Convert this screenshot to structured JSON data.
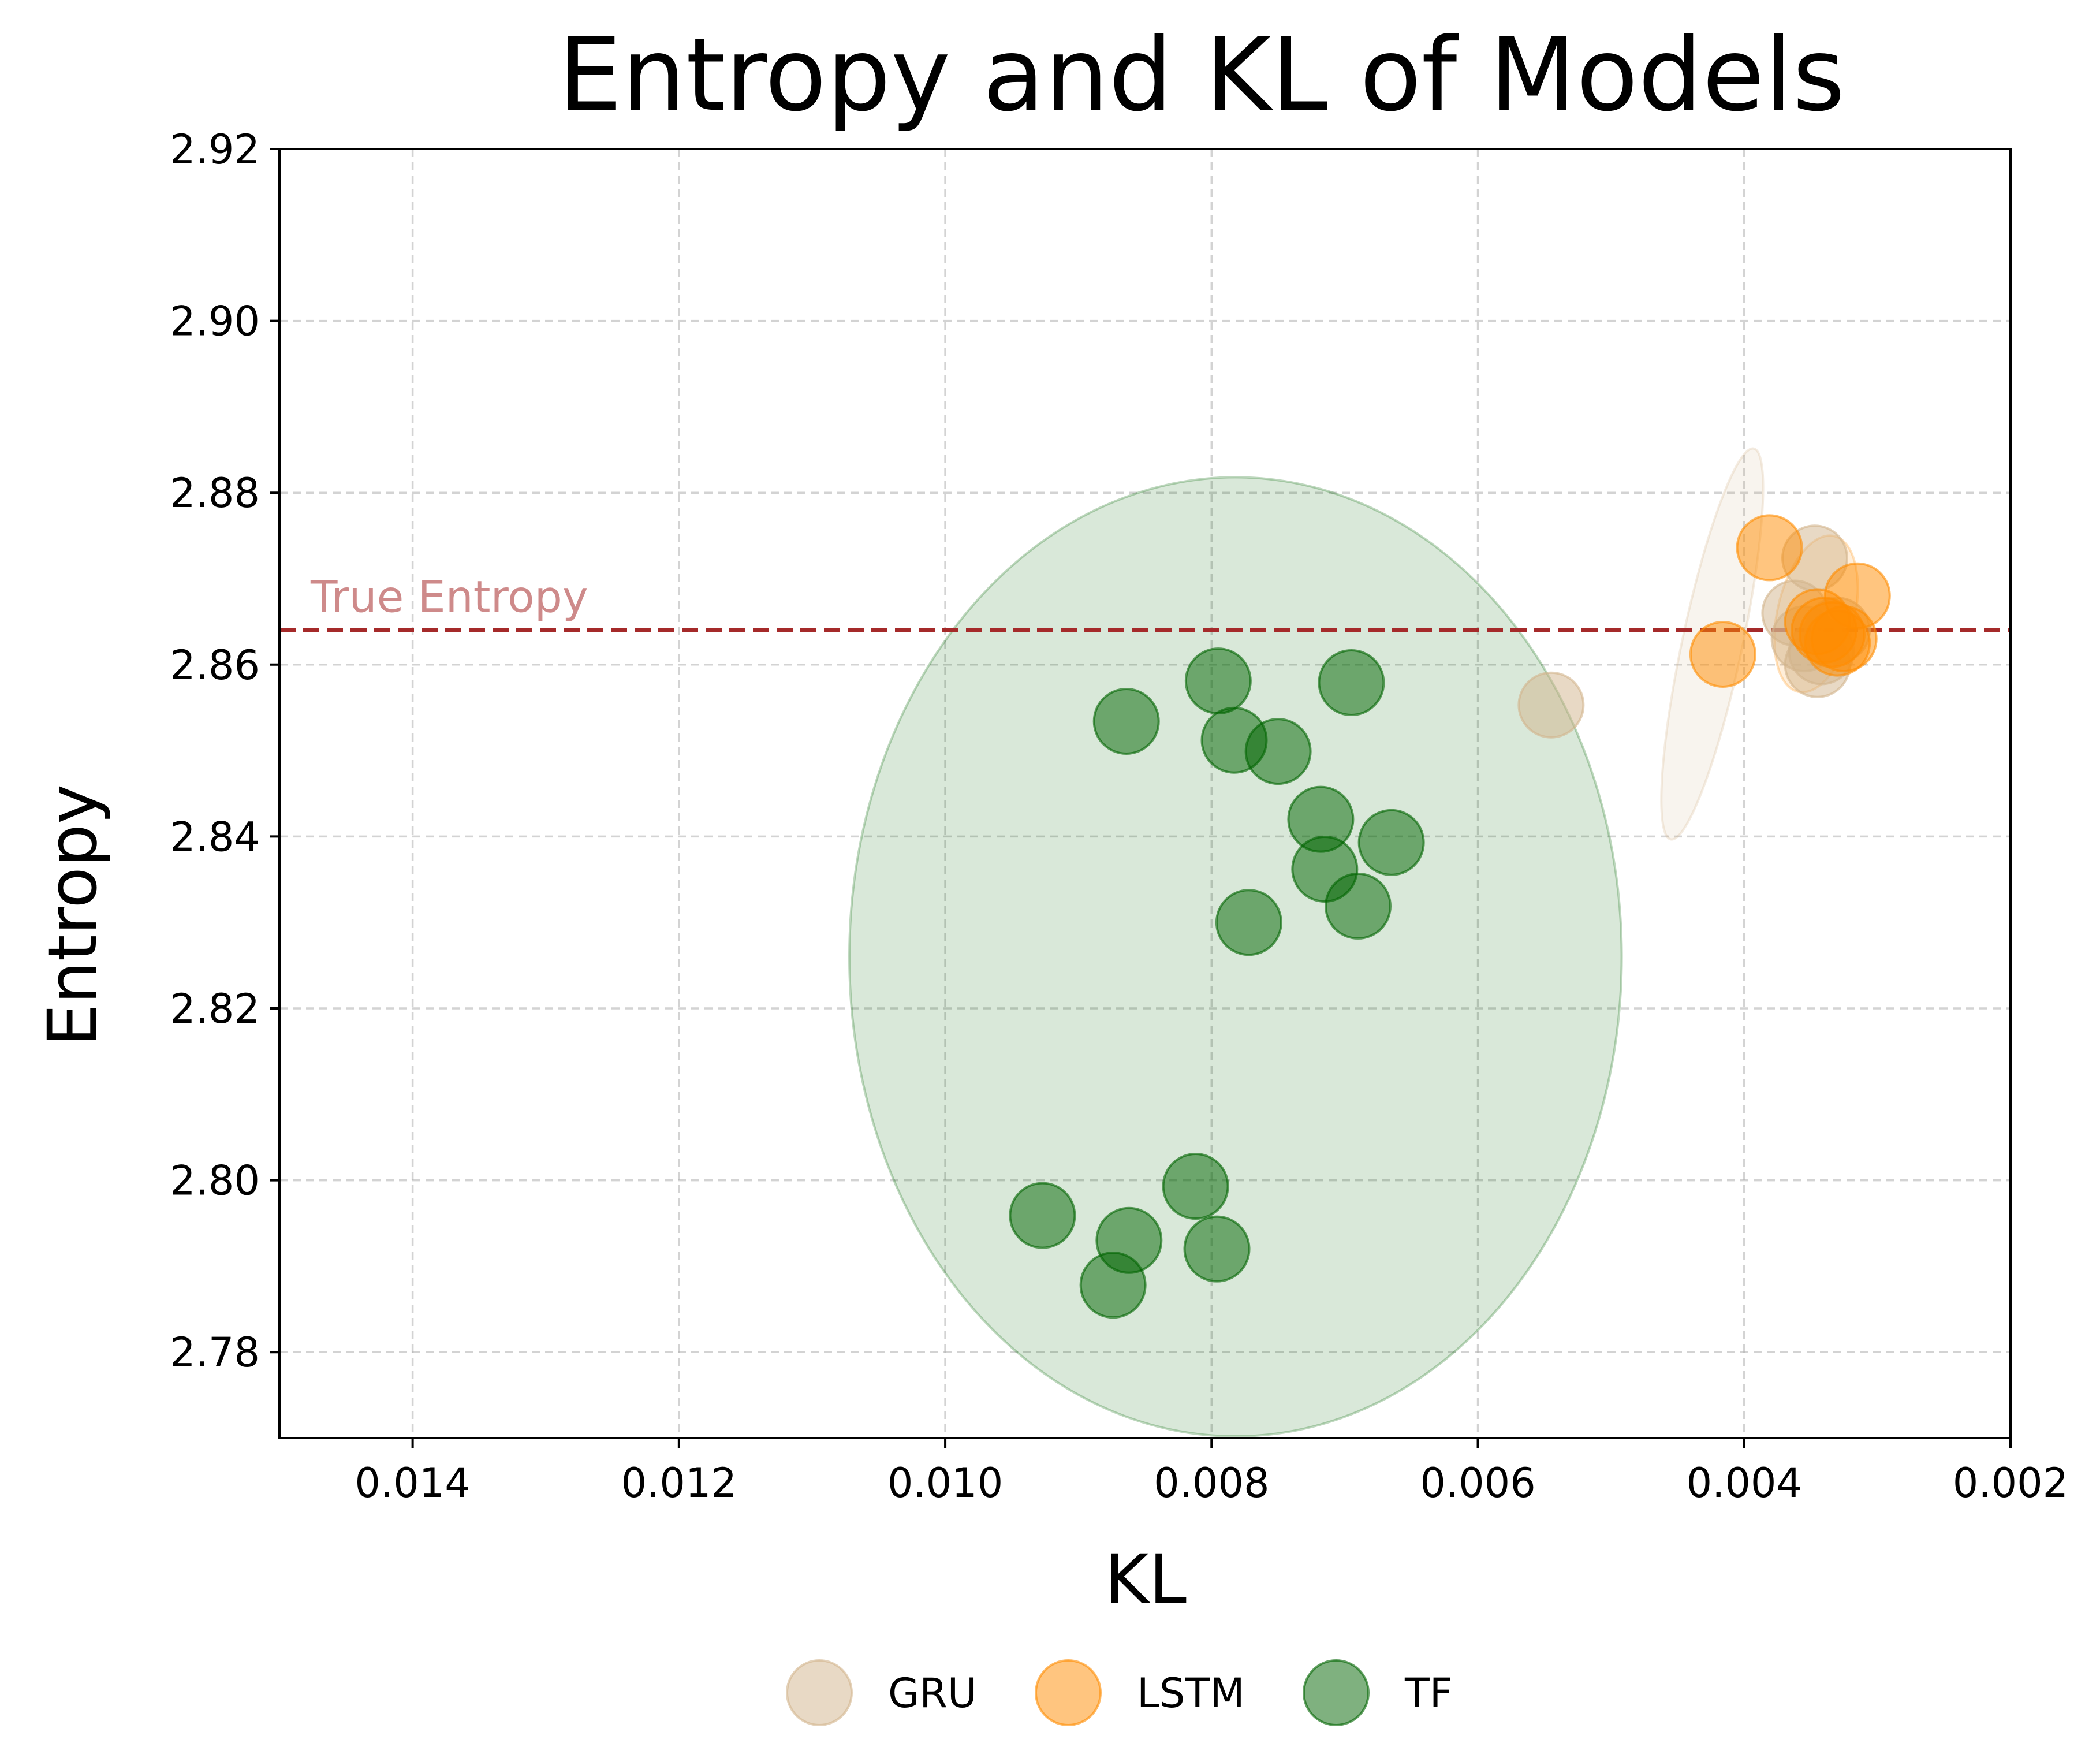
{
  "chart_data": {
    "type": "scatter",
    "title": "Entropy and KL of Models",
    "xlabel": "KL",
    "ylabel": "Entropy",
    "xlim": [
      0.015,
      0.002
    ],
    "ylim": [
      2.77,
      2.92
    ],
    "x_inverted": true,
    "grid": true,
    "xticks": [
      0.014,
      0.012,
      0.01,
      0.008,
      0.006,
      0.004,
      0.002
    ],
    "xtick_labels": [
      "0.014",
      "0.012",
      "0.010",
      "0.008",
      "0.006",
      "0.004",
      "0.002"
    ],
    "yticks": [
      2.78,
      2.8,
      2.82,
      2.84,
      2.86,
      2.88,
      2.9,
      2.92
    ],
    "ytick_labels": [
      "2.78",
      "2.80",
      "2.82",
      "2.84",
      "2.86",
      "2.88",
      "2.90",
      "2.92"
    ],
    "reference_line": {
      "label": "True Entropy",
      "y": 2.864,
      "color": "#a52a2a"
    },
    "legend_position": "bottom-center",
    "series": [
      {
        "name": "GRU",
        "color": "#d2b48c",
        "points": [
          {
            "x": 0.00545,
            "y": 2.8553
          },
          {
            "x": 0.00347,
            "y": 2.8724
          },
          {
            "x": 0.00362,
            "y": 2.866
          },
          {
            "x": 0.00342,
            "y": 2.8615
          },
          {
            "x": 0.00355,
            "y": 2.863
          },
          {
            "x": 0.0033,
            "y": 2.864
          },
          {
            "x": 0.00345,
            "y": 2.86
          }
        ],
        "ellipse": {
          "cx": 0.00424,
          "cy": 2.8624,
          "rx": 0.0015,
          "ry": 0.0035,
          "angle_deg": -78
        }
      },
      {
        "name": "LSTM",
        "color": "#ff8c00",
        "points": [
          {
            "x": 0.00381,
            "y": 2.8736
          },
          {
            "x": 0.00416,
            "y": 2.8612
          },
          {
            "x": 0.00315,
            "y": 2.868
          },
          {
            "x": 0.00345,
            "y": 2.865
          },
          {
            "x": 0.00334,
            "y": 2.8635
          },
          {
            "x": 0.0033,
            "y": 2.8625
          },
          {
            "x": 0.0034,
            "y": 2.864
          },
          {
            "x": 0.00325,
            "y": 2.863
          }
        ],
        "ellipse": {
          "cx": 0.00346,
          "cy": 2.8659,
          "rx": 0.0006,
          "ry": 0.0045,
          "angle_deg": -77
        }
      },
      {
        "name": "TF",
        "color": "#006400",
        "points": [
          {
            "x": 0.00795,
            "y": 2.8581
          },
          {
            "x": 0.00695,
            "y": 2.8579
          },
          {
            "x": 0.00864,
            "y": 2.8534
          },
          {
            "x": 0.00783,
            "y": 2.8512
          },
          {
            "x": 0.0075,
            "y": 2.8499
          },
          {
            "x": 0.00718,
            "y": 2.842
          },
          {
            "x": 0.00665,
            "y": 2.8393
          },
          {
            "x": 0.00715,
            "y": 2.8362
          },
          {
            "x": 0.0069,
            "y": 2.8319
          },
          {
            "x": 0.00772,
            "y": 2.83
          },
          {
            "x": 0.00812,
            "y": 2.7993
          },
          {
            "x": 0.00927,
            "y": 2.7959
          },
          {
            "x": 0.00862,
            "y": 2.793
          },
          {
            "x": 0.00796,
            "y": 2.792
          },
          {
            "x": 0.00874,
            "y": 2.7878
          }
        ],
        "ellipse": {
          "cx": 0.00782,
          "cy": 2.826,
          "rx": 0.0029,
          "ry": 0.0558,
          "angle_deg": 0
        }
      }
    ]
  }
}
